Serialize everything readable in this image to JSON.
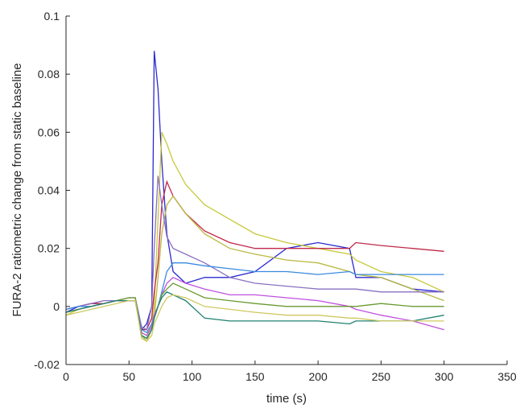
{
  "chart_data": {
    "type": "line",
    "xlabel": "time (s)",
    "ylabel": "FURA-2 ratiometric change from static baseline",
    "xlim": [
      0,
      350
    ],
    "ylim": [
      -0.02,
      0.1
    ],
    "xticks": [
      "0",
      "50",
      "100",
      "150",
      "200",
      "250",
      "300",
      "350"
    ],
    "yticks": [
      "-0.02",
      "0",
      "0.02",
      "0.04",
      "0.06",
      "0.08",
      "0.1"
    ],
    "grid": false,
    "x": [
      0,
      10,
      20,
      30,
      40,
      50,
      55,
      60,
      64,
      68,
      70,
      73,
      76,
      80,
      85,
      95,
      110,
      130,
      150,
      175,
      200,
      225,
      230,
      250,
      275,
      300
    ],
    "series": [
      {
        "color": "#2a2ad0",
        "values": [
          -0.002,
          0,
          0.001,
          0.001,
          0.002,
          0.002,
          0.002,
          -0.008,
          -0.006,
          0.0,
          0.088,
          0.075,
          0.05,
          0.025,
          0.012,
          0.008,
          0.01,
          0.01,
          0.012,
          0.02,
          0.022,
          0.02,
          0.01,
          0.01,
          0.006,
          0.005
        ]
      },
      {
        "color": "#c8c83a",
        "values": [
          -0.003,
          -0.001,
          0,
          0.001,
          0.002,
          0.003,
          0.003,
          -0.009,
          -0.01,
          -0.006,
          0.0,
          0.03,
          0.06,
          0.056,
          0.05,
          0.042,
          0.035,
          0.03,
          0.025,
          0.022,
          0.02,
          0.018,
          0.016,
          0.012,
          0.01,
          0.005
        ]
      },
      {
        "color": "#c0284a",
        "values": [
          -0.001,
          0,
          0.001,
          0.001,
          0.002,
          0.002,
          0.002,
          -0.008,
          -0.008,
          -0.004,
          0.005,
          0.015,
          0.035,
          0.043,
          0.038,
          0.032,
          0.026,
          0.022,
          0.02,
          0.02,
          0.02,
          0.02,
          0.022,
          0.021,
          0.02,
          0.019
        ]
      },
      {
        "color": "#b8b840",
        "values": [
          -0.002,
          -0.001,
          0,
          0.001,
          0.002,
          0.002,
          0.002,
          -0.01,
          -0.012,
          -0.008,
          -0.004,
          0.01,
          0.025,
          0.035,
          0.038,
          0.032,
          0.025,
          0.02,
          0.018,
          0.016,
          0.015,
          0.012,
          0.011,
          0.01,
          0.006,
          0.002
        ]
      },
      {
        "color": "#8a70c0",
        "values": [
          -0.001,
          0,
          0.001,
          0.002,
          0.002,
          0.003,
          0.003,
          -0.007,
          -0.008,
          0.0,
          0.02,
          0.045,
          0.035,
          0.024,
          0.02,
          0.018,
          0.015,
          0.01,
          0.008,
          0.007,
          0.006,
          0.006,
          0.006,
          0.005,
          0.005,
          0.005
        ]
      },
      {
        "color": "#3a8ae0",
        "values": [
          -0.001,
          0,
          0,
          0.001,
          0.002,
          0.002,
          0.002,
          -0.008,
          -0.009,
          -0.006,
          -0.003,
          0.0,
          0.005,
          0.012,
          0.015,
          0.015,
          0.014,
          0.013,
          0.012,
          0.012,
          0.011,
          0.012,
          0.011,
          0.011,
          0.011,
          0.011
        ]
      },
      {
        "color": "#c050e0",
        "values": [
          -0.002,
          -0.001,
          0,
          0.001,
          0.002,
          0.002,
          0.002,
          -0.009,
          -0.01,
          -0.007,
          -0.003,
          0.0,
          0.004,
          0.008,
          0.01,
          0.008,
          0.006,
          0.004,
          0.004,
          0.003,
          0.002,
          0.0,
          -0.001,
          -0.003,
          -0.005,
          -0.008
        ]
      },
      {
        "color": "#6a9a30",
        "values": [
          -0.002,
          -0.001,
          0,
          0.001,
          0.002,
          0.003,
          0.003,
          -0.01,
          -0.011,
          -0.008,
          -0.004,
          0.0,
          0.004,
          0.006,
          0.008,
          0.006,
          0.003,
          0.002,
          0.001,
          0.0,
          0.0,
          0.0,
          0.0,
          0.001,
          0.0,
          0.0
        ]
      },
      {
        "color": "#208070",
        "values": [
          -0.002,
          -0.001,
          0,
          0.001,
          0.002,
          0.002,
          0.002,
          -0.01,
          -0.011,
          -0.008,
          -0.004,
          0.0,
          0.003,
          0.005,
          0.004,
          0.002,
          -0.004,
          -0.005,
          -0.005,
          -0.005,
          -0.005,
          -0.006,
          -0.005,
          -0.005,
          -0.005,
          -0.003
        ]
      },
      {
        "color": "#d0c860",
        "values": [
          -0.003,
          -0.002,
          -0.001,
          0,
          0.001,
          0.002,
          0.002,
          -0.011,
          -0.012,
          -0.01,
          -0.006,
          -0.003,
          0.0,
          0.003,
          0.004,
          0.003,
          0.0,
          -0.001,
          -0.002,
          -0.003,
          -0.003,
          -0.004,
          -0.004,
          -0.005,
          -0.005,
          -0.005
        ]
      }
    ]
  }
}
